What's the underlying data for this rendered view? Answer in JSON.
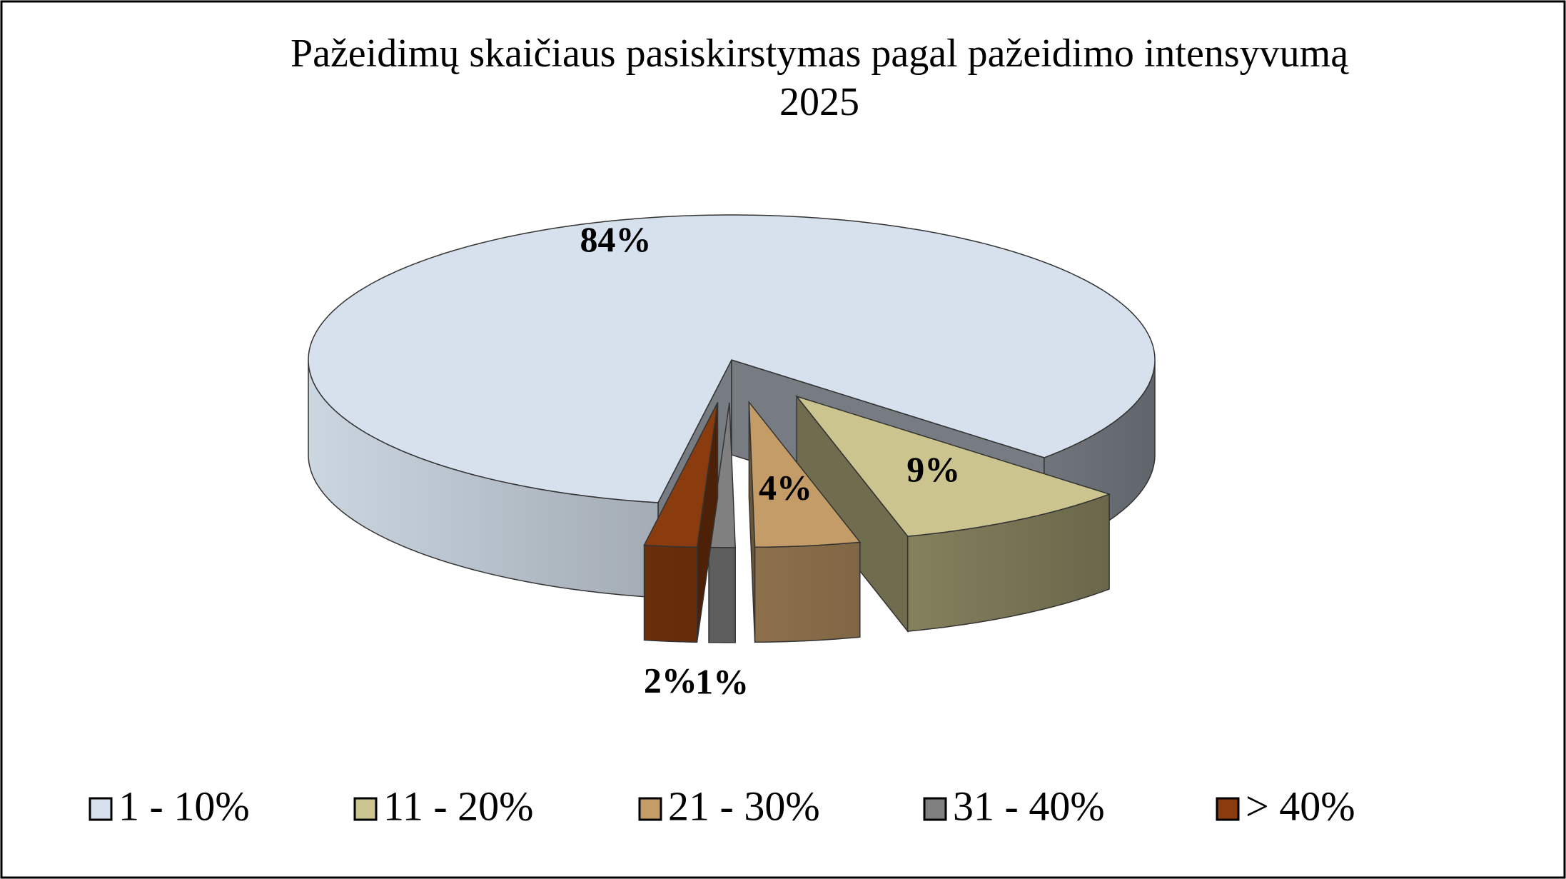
{
  "chart_data": {
    "type": "pie3d",
    "title": "Pažeidimų skaičiaus pasiskirstymas pagal pažeidimo intensyvumą",
    "subtitle": "2025",
    "categories": [
      "1 - 10%",
      "11 - 20%",
      "21 - 30%",
      "31 - 40%",
      "> 40%"
    ],
    "values": [
      84,
      9,
      4,
      1,
      2
    ],
    "value_labels": [
      "84%",
      "9%",
      "4%",
      "1%",
      "2%"
    ],
    "colors": [
      "#d6e1ed",
      "#cbc48e",
      "#c39c68",
      "#808080",
      "#8a3c0e"
    ],
    "legend": "bottom"
  }
}
